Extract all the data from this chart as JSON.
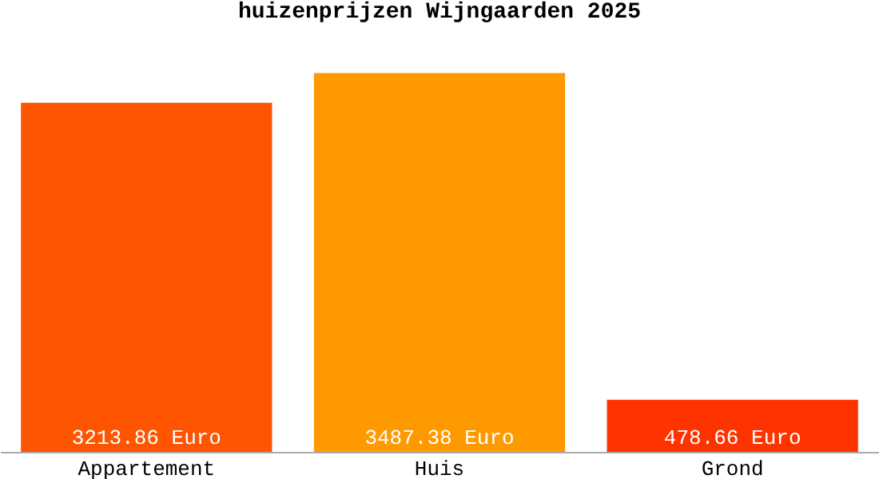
{
  "chart_data": {
    "type": "bar",
    "title": "huizenprijzen Wijngaarden 2025",
    "categories": [
      "Appartement",
      "Huis",
      "Grond"
    ],
    "values": [
      3213.86,
      3487.38,
      478.66
    ],
    "colors": [
      "#ff5500",
      "#ff9900",
      "#ff3300"
    ],
    "value_labels": [
      "3213.86 Euro",
      "3487.38 Euro",
      "478.66 Euro"
    ],
    "grid": false,
    "legend": false
  }
}
